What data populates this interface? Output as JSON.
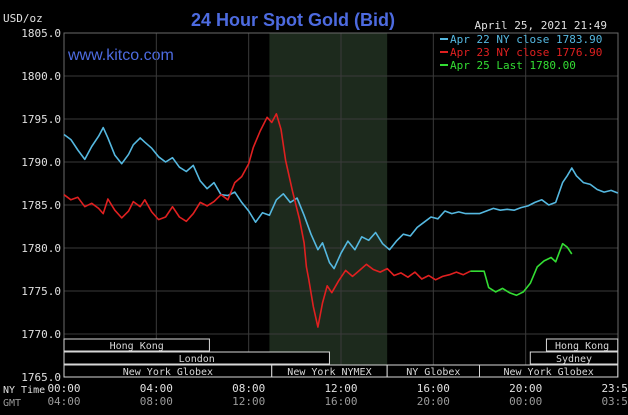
{
  "chart_data": {
    "type": "line",
    "title": "24 Hour Spot Gold (Bid)",
    "website": "www.kitco.com",
    "date_label": "April 25, 2021 21:49",
    "ylabel": "USD/oz",
    "ylim": [
      1765,
      1805
    ],
    "y_ticks": [
      "1805.0",
      "1800.0",
      "1795.0",
      "1790.0",
      "1785.0",
      "1780.0",
      "1775.0",
      "1770.0",
      "1765.0"
    ],
    "x_label_ny": "NY Time",
    "x_label_gmt": "GMT",
    "x_ticks_ny": [
      "00:00",
      "04:00",
      "08:00",
      "12:00",
      "16:00",
      "20:00",
      "23:59"
    ],
    "x_ticks_gmt": [
      "04:00",
      "08:00",
      "12:00",
      "16:00",
      "20:00",
      "00:00",
      "03:59"
    ],
    "colors": {
      "background": "#000000",
      "grid": "#3a3a3a",
      "shade": "#1d2a1d",
      "title": "#4d6be0",
      "series1": "#55b8e0",
      "series2": "#e02020",
      "series3": "#33dd33",
      "axis_text": "#e0e0e0"
    },
    "legend_position": "top-right",
    "grid": true,
    "series": [
      {
        "name": "Apr 22 NY close 1783.90",
        "color": "#55b8e0",
        "points": [
          [
            0,
            1793.2
          ],
          [
            0.3,
            1792.6
          ],
          [
            0.6,
            1791.4
          ],
          [
            0.9,
            1790.3
          ],
          [
            1.2,
            1791.8
          ],
          [
            1.5,
            1793.0
          ],
          [
            1.7,
            1794.0
          ],
          [
            1.9,
            1792.8
          ],
          [
            2.2,
            1790.8
          ],
          [
            2.5,
            1789.8
          ],
          [
            2.8,
            1790.9
          ],
          [
            3.0,
            1792.0
          ],
          [
            3.3,
            1792.8
          ],
          [
            3.5,
            1792.3
          ],
          [
            3.8,
            1791.6
          ],
          [
            4.1,
            1790.6
          ],
          [
            4.4,
            1790.0
          ],
          [
            4.7,
            1790.5
          ],
          [
            5.0,
            1789.4
          ],
          [
            5.3,
            1788.9
          ],
          [
            5.6,
            1789.6
          ],
          [
            5.9,
            1787.8
          ],
          [
            6.2,
            1786.9
          ],
          [
            6.5,
            1787.6
          ],
          [
            6.8,
            1786.2
          ],
          [
            7.1,
            1786.1
          ],
          [
            7.4,
            1786.5
          ],
          [
            7.7,
            1785.3
          ],
          [
            8.0,
            1784.3
          ],
          [
            8.3,
            1783.0
          ],
          [
            8.6,
            1784.1
          ],
          [
            8.9,
            1783.8
          ],
          [
            9.2,
            1785.6
          ],
          [
            9.5,
            1786.3
          ],
          [
            9.8,
            1785.3
          ],
          [
            10.1,
            1785.8
          ],
          [
            10.4,
            1783.8
          ],
          [
            10.7,
            1781.6
          ],
          [
            11.0,
            1779.8
          ],
          [
            11.2,
            1780.6
          ],
          [
            11.5,
            1778.3
          ],
          [
            11.7,
            1777.6
          ],
          [
            12.0,
            1779.4
          ],
          [
            12.3,
            1780.8
          ],
          [
            12.6,
            1779.8
          ],
          [
            12.9,
            1781.3
          ],
          [
            13.2,
            1780.9
          ],
          [
            13.5,
            1781.8
          ],
          [
            13.8,
            1780.5
          ],
          [
            14.1,
            1779.8
          ],
          [
            14.4,
            1780.8
          ],
          [
            14.7,
            1781.6
          ],
          [
            15.0,
            1781.4
          ],
          [
            15.3,
            1782.4
          ],
          [
            15.6,
            1783.0
          ],
          [
            15.9,
            1783.6
          ],
          [
            16.2,
            1783.4
          ],
          [
            16.5,
            1784.3
          ],
          [
            16.8,
            1784.0
          ],
          [
            17.1,
            1784.2
          ],
          [
            17.4,
            1784.0
          ],
          [
            17.7,
            1784.0
          ],
          [
            18.0,
            1784.0
          ],
          [
            18.3,
            1784.3
          ],
          [
            18.6,
            1784.6
          ],
          [
            18.9,
            1784.4
          ],
          [
            19.2,
            1784.5
          ],
          [
            19.5,
            1784.4
          ],
          [
            19.8,
            1784.7
          ],
          [
            20.1,
            1784.9
          ],
          [
            20.4,
            1785.3
          ],
          [
            20.7,
            1785.6
          ],
          [
            21.0,
            1785.0
          ],
          [
            21.3,
            1785.3
          ],
          [
            21.6,
            1787.6
          ],
          [
            21.8,
            1788.4
          ],
          [
            22.0,
            1789.3
          ],
          [
            22.2,
            1788.4
          ],
          [
            22.5,
            1787.6
          ],
          [
            22.8,
            1787.4
          ],
          [
            23.1,
            1786.8
          ],
          [
            23.4,
            1786.5
          ],
          [
            23.7,
            1786.7
          ],
          [
            23.99,
            1786.4
          ]
        ]
      },
      {
        "name": "Apr 23 NY close 1776.90",
        "color": "#e02020",
        "points": [
          [
            0,
            1786.2
          ],
          [
            0.3,
            1785.6
          ],
          [
            0.6,
            1785.9
          ],
          [
            0.9,
            1784.8
          ],
          [
            1.2,
            1785.2
          ],
          [
            1.5,
            1784.6
          ],
          [
            1.7,
            1784.0
          ],
          [
            1.9,
            1785.7
          ],
          [
            2.2,
            1784.4
          ],
          [
            2.5,
            1783.5
          ],
          [
            2.8,
            1784.3
          ],
          [
            3.0,
            1785.4
          ],
          [
            3.3,
            1784.8
          ],
          [
            3.5,
            1785.6
          ],
          [
            3.8,
            1784.2
          ],
          [
            4.1,
            1783.3
          ],
          [
            4.4,
            1783.6
          ],
          [
            4.7,
            1784.8
          ],
          [
            5.0,
            1783.6
          ],
          [
            5.3,
            1783.1
          ],
          [
            5.6,
            1784.0
          ],
          [
            5.9,
            1785.3
          ],
          [
            6.2,
            1784.9
          ],
          [
            6.5,
            1785.4
          ],
          [
            6.8,
            1786.2
          ],
          [
            7.1,
            1785.6
          ],
          [
            7.4,
            1787.6
          ],
          [
            7.7,
            1788.3
          ],
          [
            8.0,
            1789.8
          ],
          [
            8.2,
            1791.7
          ],
          [
            8.5,
            1793.6
          ],
          [
            8.8,
            1795.2
          ],
          [
            9.0,
            1794.6
          ],
          [
            9.2,
            1795.6
          ],
          [
            9.4,
            1793.8
          ],
          [
            9.6,
            1790.2
          ],
          [
            9.9,
            1786.6
          ],
          [
            10.2,
            1783.4
          ],
          [
            10.4,
            1780.6
          ],
          [
            10.5,
            1777.8
          ],
          [
            10.6,
            1776.4
          ],
          [
            10.8,
            1773.2
          ],
          [
            11.0,
            1770.8
          ],
          [
            11.2,
            1773.6
          ],
          [
            11.4,
            1775.6
          ],
          [
            11.6,
            1774.8
          ],
          [
            11.9,
            1776.2
          ],
          [
            12.2,
            1777.4
          ],
          [
            12.5,
            1776.7
          ],
          [
            12.8,
            1777.4
          ],
          [
            13.1,
            1778.1
          ],
          [
            13.4,
            1777.5
          ],
          [
            13.7,
            1777.2
          ],
          [
            14.0,
            1777.6
          ],
          [
            14.3,
            1776.8
          ],
          [
            14.6,
            1777.1
          ],
          [
            14.9,
            1776.6
          ],
          [
            15.2,
            1777.2
          ],
          [
            15.5,
            1776.4
          ],
          [
            15.8,
            1776.8
          ],
          [
            16.1,
            1776.3
          ],
          [
            16.4,
            1776.7
          ],
          [
            16.7,
            1776.9
          ],
          [
            17.0,
            1777.2
          ],
          [
            17.3,
            1776.9
          ],
          [
            17.6,
            1777.3
          ]
        ]
      },
      {
        "name": "Apr 25 Last 1780.00",
        "color": "#33dd33",
        "points": [
          [
            17.6,
            1777.3
          ],
          [
            17.9,
            1777.3
          ],
          [
            18.2,
            1777.3
          ],
          [
            18.4,
            1775.4
          ],
          [
            18.7,
            1774.9
          ],
          [
            19.0,
            1775.3
          ],
          [
            19.3,
            1774.8
          ],
          [
            19.6,
            1774.5
          ],
          [
            19.9,
            1774.9
          ],
          [
            20.2,
            1775.9
          ],
          [
            20.5,
            1777.8
          ],
          [
            20.8,
            1778.5
          ],
          [
            21.1,
            1778.9
          ],
          [
            21.3,
            1778.4
          ],
          [
            21.6,
            1780.5
          ],
          [
            21.8,
            1780.1
          ],
          [
            22.0,
            1779.3
          ]
        ]
      }
    ],
    "sessions": [
      {
        "label": "Hong Kong",
        "start": 0,
        "end": 6.3,
        "row": 0
      },
      {
        "label": "Hong Kong",
        "start": 20.9,
        "end": 23.99,
        "row": 0
      },
      {
        "label": "London",
        "start": 0,
        "end": 11.5,
        "row": 1
      },
      {
        "label": "Sydney",
        "start": 20.2,
        "end": 23.99,
        "row": 1
      },
      {
        "label": "New York Globex",
        "start": 0,
        "end": 9.0,
        "row": 2
      },
      {
        "label": "New York NYMEX",
        "start": 9.0,
        "end": 14.0,
        "row": 2
      },
      {
        "label": "NY Globex",
        "start": 14.0,
        "end": 18.0,
        "row": 2
      },
      {
        "label": "New York Globex",
        "start": 18.0,
        "end": 23.99,
        "row": 2
      }
    ],
    "shaded_range": [
      8.9,
      14.0
    ]
  }
}
